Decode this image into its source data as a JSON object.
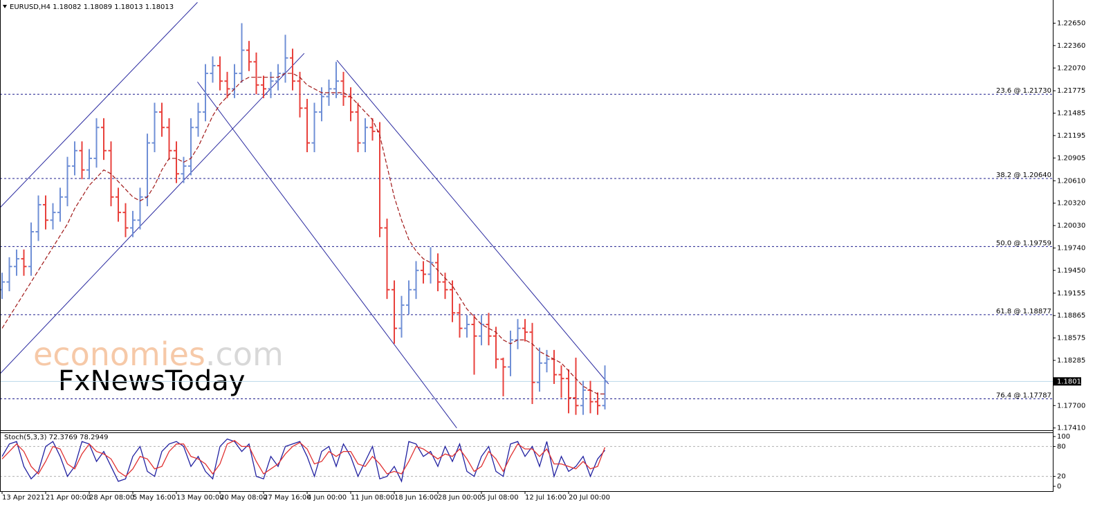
{
  "chart_data": [
    {
      "type": "ohlc",
      "title": "EURUSD,H4  1.18082 1.18089 1.18013 1.18013",
      "categories": [
        "13 Apr 2021",
        null,
        null,
        null,
        null,
        null,
        "21 Apr 00:00",
        null,
        null,
        null,
        null,
        null,
        "28 Apr 08:00",
        null,
        null,
        null,
        null,
        null,
        "5 May 16:00",
        null,
        null,
        null,
        null,
        null,
        "13 May 00:00",
        null,
        null,
        null,
        null,
        null,
        "20 May 08:00",
        null,
        null,
        null,
        null,
        null,
        "27 May 16:00",
        null,
        null,
        null,
        null,
        null,
        "4 Jun 00:00",
        null,
        null,
        null,
        null,
        null,
        "11 Jun 08:00",
        null,
        null,
        null,
        null,
        null,
        "18 Jun 16:00",
        null,
        null,
        null,
        null,
        null,
        "28 Jun 00:00",
        null,
        null,
        null,
        null,
        null,
        "5 Jul 08:00",
        null,
        null,
        null,
        null,
        null,
        "12 Jul 16:00",
        null,
        null,
        null,
        null,
        null,
        "20 Jul 00:00",
        null,
        null,
        null,
        null,
        null
      ],
      "open": [
        1.192,
        1.193,
        1.195,
        1.196,
        1.195,
        1.1995,
        1.203,
        1.201,
        1.202,
        1.204,
        1.208,
        1.21,
        1.2075,
        1.209,
        1.213,
        1.21,
        1.204,
        1.202,
        1.2,
        1.201,
        1.204,
        1.211,
        1.215,
        1.213,
        1.21,
        1.207,
        1.208,
        1.213,
        1.215,
        1.22,
        1.221,
        1.219,
        1.218,
        1.22,
        1.223,
        1.2215,
        1.2185,
        1.218,
        1.219,
        1.22,
        1.222,
        1.219,
        1.2155,
        1.211,
        1.215,
        1.217,
        1.218,
        1.219,
        1.217,
        1.215,
        1.211,
        1.213,
        1.2125,
        1.2,
        1.192,
        1.187,
        1.19,
        1.192,
        1.1945,
        1.194,
        1.1955,
        1.193,
        1.192,
        1.189,
        1.187,
        1.1875,
        1.186,
        1.1875,
        1.186,
        1.183,
        1.182,
        1.1855,
        1.187,
        1.1865,
        1.18,
        1.1825,
        1.183,
        1.181,
        1.1805,
        1.178,
        1.177,
        1.179,
        1.1775,
        1.177
      ],
      "high": [
        1.1942,
        1.1962,
        1.1972,
        1.1972,
        1.2007,
        1.2042,
        1.2042,
        1.2032,
        1.2052,
        1.2092,
        1.2112,
        1.2112,
        1.2102,
        1.2142,
        1.2142,
        1.2112,
        1.2052,
        1.2032,
        1.2022,
        1.2052,
        1.2122,
        1.2162,
        1.2162,
        1.2142,
        1.2112,
        1.2092,
        1.2142,
        1.2162,
        1.2212,
        1.2222,
        1.2222,
        1.2202,
        1.2212,
        1.2265,
        1.2242,
        1.2227,
        1.2197,
        1.2202,
        1.2212,
        1.225,
        1.2232,
        1.2202,
        1.2167,
        1.2162,
        1.2182,
        1.2192,
        1.2215,
        1.2202,
        1.2182,
        1.2162,
        1.2142,
        1.2142,
        1.2137,
        1.2012,
        1.1932,
        1.1912,
        1.1932,
        1.1957,
        1.1957,
        1.1975,
        1.1967,
        1.1942,
        1.1932,
        1.1902,
        1.1887,
        1.1887,
        1.1887,
        1.189,
        1.1872,
        1.1832,
        1.1867,
        1.1882,
        1.1882,
        1.1877,
        1.1845,
        1.1842,
        1.1842,
        1.1822,
        1.1817,
        1.1832,
        1.1802,
        1.1802,
        1.1787,
        1.1822
      ],
      "low": [
        1.1908,
        1.1918,
        1.1938,
        1.1938,
        1.1938,
        1.1983,
        1.1998,
        1.1998,
        1.2008,
        1.2028,
        1.2068,
        1.2063,
        1.2063,
        1.2078,
        1.2088,
        1.2028,
        1.2008,
        1.1988,
        1.1988,
        1.1998,
        1.2028,
        1.2098,
        1.2118,
        1.2088,
        1.2058,
        1.2058,
        1.2068,
        1.2118,
        1.2138,
        1.2188,
        1.2178,
        1.2168,
        1.2168,
        1.2188,
        1.2203,
        1.2173,
        1.2168,
        1.2168,
        1.2178,
        1.2188,
        1.2178,
        1.2143,
        1.2098,
        1.2098,
        1.2138,
        1.2158,
        1.2168,
        1.2158,
        1.2138,
        1.2098,
        1.2098,
        1.2113,
        1.1988,
        1.1908,
        1.185,
        1.1858,
        1.1888,
        1.1908,
        1.1928,
        1.1928,
        1.1918,
        1.1908,
        1.1878,
        1.1858,
        1.1858,
        1.181,
        1.1848,
        1.1848,
        1.1818,
        1.1782,
        1.1808,
        1.1843,
        1.1853,
        1.1772,
        1.1788,
        1.1813,
        1.1798,
        1.178,
        1.176,
        1.1758,
        1.1758,
        1.176,
        1.1758,
        1.1765
      ],
      "close": [
        1.193,
        1.195,
        1.196,
        1.195,
        1.1995,
        1.203,
        1.201,
        1.202,
        1.204,
        1.208,
        1.21,
        1.2075,
        1.209,
        1.213,
        1.21,
        1.204,
        1.202,
        1.2,
        1.201,
        1.204,
        1.211,
        1.215,
        1.213,
        1.21,
        1.207,
        1.208,
        1.213,
        1.215,
        1.22,
        1.221,
        1.219,
        1.218,
        1.22,
        1.223,
        1.2215,
        1.2185,
        1.218,
        1.219,
        1.22,
        1.222,
        1.219,
        1.2155,
        1.211,
        1.215,
        1.217,
        1.218,
        1.219,
        1.217,
        1.215,
        1.211,
        1.213,
        1.2125,
        1.2,
        1.192,
        1.187,
        1.19,
        1.192,
        1.1945,
        1.194,
        1.1955,
        1.193,
        1.192,
        1.189,
        1.187,
        1.1875,
        1.186,
        1.1875,
        1.186,
        1.183,
        1.182,
        1.1855,
        1.187,
        1.1865,
        1.18,
        1.1825,
        1.183,
        1.181,
        1.1805,
        1.178,
        1.177,
        1.179,
        1.1775,
        1.177,
        1.1801
      ],
      "up_color": "#6f8fd6",
      "down_color": "#e8413c",
      "ma": {
        "color": "#a01818",
        "values": [
          1.187,
          1.1885,
          1.19,
          1.1915,
          1.193,
          1.1945,
          1.196,
          1.1975,
          1.199,
          1.2005,
          1.2025,
          1.204,
          1.2055,
          1.2065,
          1.2075,
          1.207,
          1.206,
          1.205,
          1.204,
          1.2035,
          1.204,
          1.2055,
          1.2075,
          1.209,
          1.209,
          1.2085,
          1.209,
          1.2105,
          1.2125,
          1.2145,
          1.216,
          1.217,
          1.218,
          1.219,
          1.2195,
          1.2195,
          1.2195,
          1.2195,
          1.2195,
          1.22,
          1.22,
          1.2195,
          1.2185,
          1.218,
          1.2175,
          1.2175,
          1.2175,
          1.2175,
          1.217,
          1.216,
          1.215,
          1.214,
          1.212,
          1.208,
          1.204,
          1.201,
          1.1985,
          1.197,
          1.196,
          1.1955,
          1.1945,
          1.1935,
          1.1925,
          1.191,
          1.1895,
          1.1885,
          1.1875,
          1.187,
          1.1865,
          1.1855,
          1.185,
          1.1855,
          1.1855,
          1.185,
          1.184,
          1.1835,
          1.183,
          1.1825,
          1.1815,
          1.1805,
          1.1795,
          1.179,
          1.1785,
          1.1785
        ]
      },
      "ylim": [
        1.1738,
        1.2295
      ],
      "yticks": [
        {
          "value": 1.2265,
          "label": "1.22650"
        },
        {
          "value": 1.2236,
          "label": "1.22360"
        },
        {
          "value": 1.2207,
          "label": "1.22070"
        },
        1.21775,
        1.21485,
        1.21195,
        1.20905,
        {
          "value": 1.2061,
          "label": "1.20610"
        },
        {
          "value": 1.2032,
          "label": "1.20320"
        },
        {
          "value": 1.2003,
          "label": "1.20030"
        },
        {
          "value": 1.1974,
          "label": "1.19740"
        },
        {
          "value": 1.1945,
          "label": "1.19450"
        },
        1.19155,
        1.18865,
        1.18575,
        1.18285,
        {
          "value": 1.177,
          "label": "1.17700"
        },
        {
          "value": 1.1741,
          "label": "1.17410"
        }
      ],
      "levels": [
        {
          "label": "23.6 @ 1.21730",
          "value": 1.2173
        },
        {
          "label": "38.2 @ 1.20640",
          "value": 1.2064
        },
        {
          "label": "50.0 @ 1.19759",
          "value": 1.19759
        },
        {
          "label": "61.8 @ 1.18877",
          "value": 1.18877
        },
        {
          "label": "76.4 @ 1.17787",
          "value": 1.17787
        }
      ],
      "level_color": "#1c1c8c",
      "trendlines": [
        {
          "x": [
            -0.3,
            26.9
          ],
          "y": [
            1.2026,
            1.2292
          ]
        },
        {
          "x": [
            -0.3,
            41.6
          ],
          "y": [
            1.1811,
            1.2226
          ]
        },
        {
          "x": [
            26.9,
            62.6
          ],
          "y": [
            1.2189,
            1.1741
          ]
        },
        {
          "x": [
            46.1,
            83.5
          ],
          "y": [
            1.2217,
            1.1798
          ]
        }
      ],
      "trend_color": "#2a2aa0",
      "current": 1.18013,
      "current_color": "#b9d7ea",
      "watermark": [
        "economies",
        ".com",
        "FxNewsToday"
      ]
    },
    {
      "type": "line",
      "title": "Stoch(5,3,3) 72.3769 78.2949",
      "series": [
        {
          "color": "#2020a0",
          "values": [
            60,
            85,
            90,
            40,
            15,
            30,
            80,
            90,
            60,
            20,
            40,
            90,
            85,
            50,
            70,
            40,
            10,
            15,
            60,
            80,
            30,
            20,
            70,
            85,
            90,
            80,
            40,
            60,
            30,
            15,
            80,
            95,
            90,
            70,
            85,
            20,
            15,
            60,
            40,
            80,
            85,
            90,
            60,
            20,
            70,
            80,
            40,
            85,
            60,
            20,
            50,
            80,
            15,
            20,
            40,
            10,
            90,
            85,
            60,
            70,
            40,
            80,
            50,
            85,
            30,
            20,
            60,
            80,
            30,
            20,
            85,
            90,
            60,
            80,
            40,
            90,
            20,
            60,
            30,
            40,
            60,
            20,
            55,
            72.3769
          ]
        },
        {
          "color": "#e03030",
          "values": [
            55,
            70,
            85,
            70,
            40,
            25,
            50,
            80,
            75,
            45,
            35,
            65,
            85,
            70,
            65,
            55,
            30,
            20,
            35,
            60,
            55,
            35,
            40,
            70,
            85,
            85,
            60,
            55,
            45,
            25,
            45,
            85,
            92,
            80,
            80,
            50,
            25,
            35,
            45,
            65,
            80,
            88,
            75,
            45,
            50,
            70,
            60,
            70,
            70,
            45,
            40,
            60,
            45,
            25,
            30,
            25,
            50,
            80,
            75,
            65,
            55,
            65,
            60,
            75,
            55,
            30,
            40,
            70,
            55,
            30,
            60,
            85,
            75,
            75,
            60,
            75,
            45,
            45,
            40,
            35,
            50,
            35,
            40,
            78.2949
          ]
        }
      ],
      "ylim": [
        0,
        100
      ],
      "yticks": [
        0,
        20,
        80,
        100
      ],
      "hlines": [
        20,
        80
      ]
    }
  ]
}
